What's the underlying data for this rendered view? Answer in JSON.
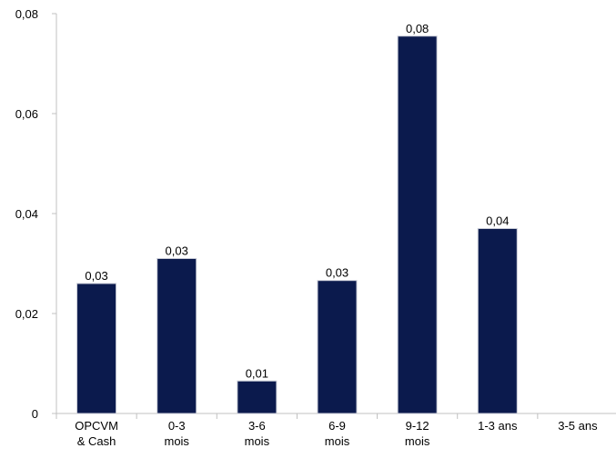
{
  "chart_data": {
    "type": "bar",
    "categories": [
      [
        "OPCVM",
        "& Cash"
      ],
      [
        "0-3",
        "mois"
      ],
      [
        "3-6",
        "mois"
      ],
      [
        "6-9",
        "mois"
      ],
      [
        "9-12",
        "mois"
      ],
      [
        "1-3 ans"
      ],
      [
        "3-5 ans"
      ]
    ],
    "values": [
      0.026,
      0.031,
      0.0065,
      0.0266,
      0.0755,
      0.037,
      0
    ],
    "data_labels": [
      "0,03",
      "0,03",
      "0,01",
      "0,03",
      "0,08",
      "0,04",
      ""
    ],
    "ylim": [
      0,
      0.08
    ],
    "yticks": [
      0,
      0.02,
      0.04,
      0.06,
      0.08
    ],
    "ytick_labels": [
      "0",
      "0,02",
      "0,04",
      "0,06",
      "0,08"
    ],
    "title": "",
    "xlabel": "",
    "ylabel": "",
    "grid": false,
    "legend": "none",
    "bar_color": "#0b1a4d",
    "axis_color": "#c0c0c0"
  }
}
